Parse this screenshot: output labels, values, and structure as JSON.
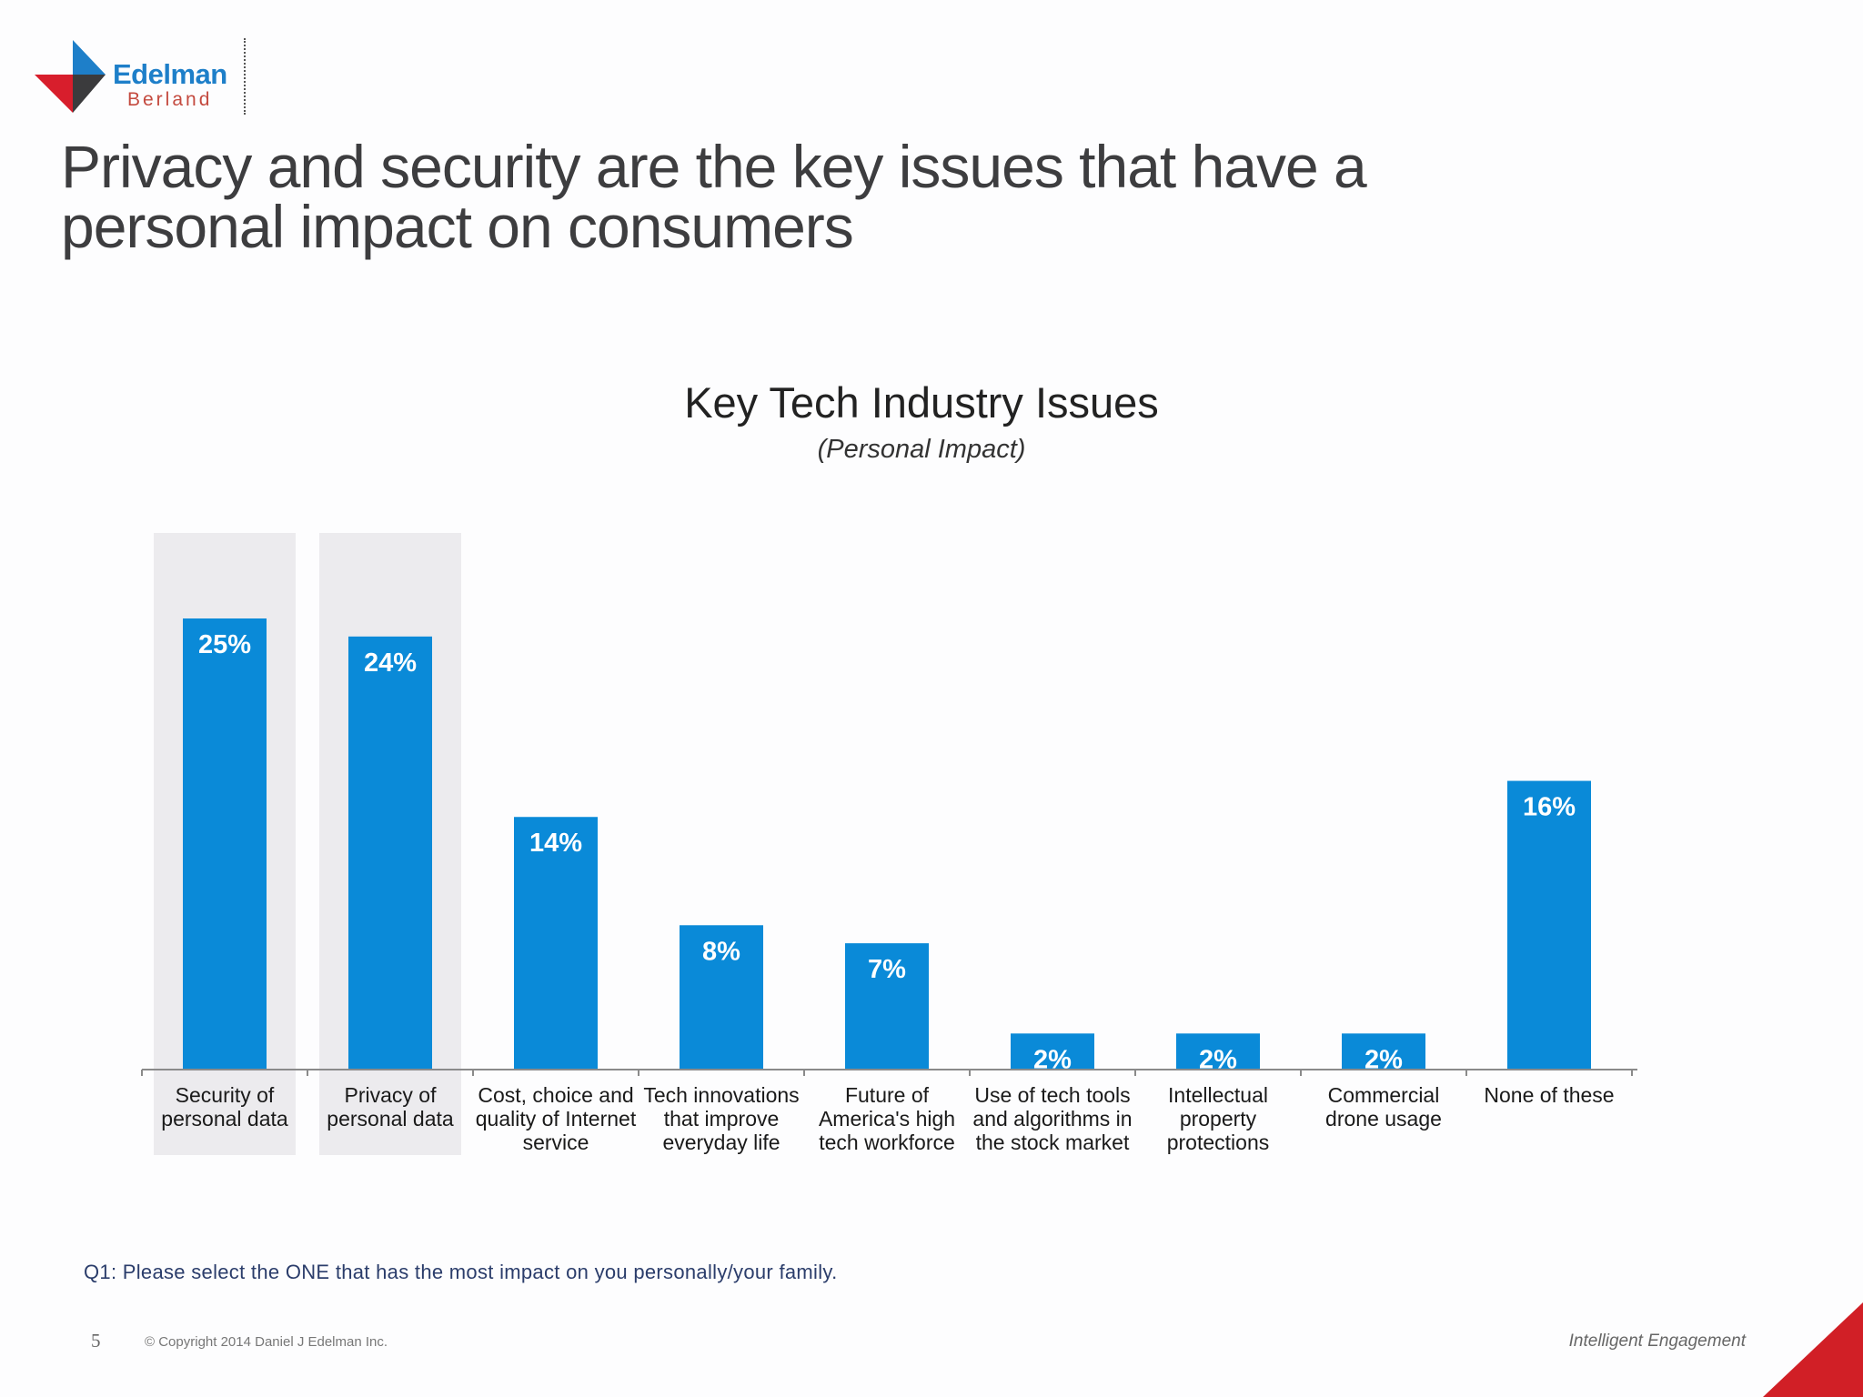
{
  "brand": {
    "name": "Edelman",
    "sub": "Berland",
    "colors": {
      "blue": "#1e7fc9",
      "red": "#d81e2c",
      "dark": "#3b3b3d"
    }
  },
  "slide": {
    "title_line1": "Privacy and security are the key issues that have a",
    "title_line2": "personal impact on consumers"
  },
  "chart_data": {
    "type": "bar",
    "title": "Key Tech Industry Issues",
    "subtitle": "(Personal Impact)",
    "categories": [
      [
        "Security of",
        "personal data"
      ],
      [
        "Privacy of",
        "personal data"
      ],
      [
        "Cost, choice and",
        "quality of Internet",
        "service"
      ],
      [
        "Tech innovations",
        "that improve",
        "everyday life"
      ],
      [
        "Future of",
        "America's high",
        "tech workforce"
      ],
      [
        "Use of tech tools",
        "and algorithms in",
        "the stock market"
      ],
      [
        "Intellectual",
        "property",
        "protections"
      ],
      [
        "Commercial",
        "drone usage"
      ],
      [
        "None of these"
      ]
    ],
    "values": [
      25,
      24,
      14,
      8,
      7,
      2,
      2,
      2,
      16
    ],
    "value_labels": [
      "25%",
      "24%",
      "14%",
      "8%",
      "7%",
      "2%",
      "2%",
      "2%",
      "16%"
    ],
    "highlighted": [
      0,
      1
    ],
    "bar_color": "#0a8ad8",
    "highlight_color": "#ecebee",
    "ylim": [
      0,
      25
    ],
    "xlabel": "",
    "ylabel": "",
    "legend": "none"
  },
  "footer": {
    "question": "Q1: Please select the ONE that has the most impact on you personally/your family.",
    "page_number": "5",
    "copyright": "© Copyright 2014 Daniel J Edelman Inc.",
    "tagline": "Intelligent Engagement"
  }
}
